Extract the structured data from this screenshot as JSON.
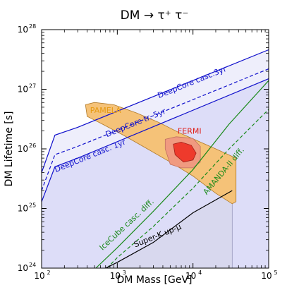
{
  "chart_data": {
    "type": "line",
    "title": "DM → τ⁺ τ⁻",
    "xlabel": "DM Mass [GeV]",
    "ylabel": "DM Lifetime [s]",
    "x_scale": "log",
    "y_scale": "log",
    "xlim": [
      100,
      100000
    ],
    "ylim": [
      1e+24,
      1e+28
    ],
    "xticks": [
      {
        "value": 100,
        "base": "10",
        "exp": "2"
      },
      {
        "value": 1000,
        "base": "10",
        "exp": "3"
      },
      {
        "value": 10000,
        "base": "10",
        "exp": "4"
      },
      {
        "value": 100000,
        "base": "10",
        "exp": "5"
      }
    ],
    "yticks": [
      {
        "value": 1e+24,
        "base": "10",
        "exp": "24"
      },
      {
        "value": 1e+25,
        "base": "10",
        "exp": "25"
      },
      {
        "value": 1e+26,
        "base": "10",
        "exp": "26"
      },
      {
        "value": 1e+27,
        "base": "10",
        "exp": "27"
      },
      {
        "value": 1e+28,
        "base": "10",
        "exp": "28"
      }
    ],
    "grid": false,
    "colors": {
      "deepcore": "#1010cc",
      "fill_deepcore_3yr": "#eeeefb",
      "fill_deepcore_1yr": "#ddddf8",
      "fill_superk": "#d8d8ee",
      "icecube": "#1a8a1a",
      "pamela_fill": "#f5c278",
      "pamela_edge": "#b07a2a",
      "pamela_label": "#e69a10",
      "fermi_outer": "#f09a80",
      "fermi_inner": "#ee3a2c",
      "fermi_label": "#e0201a",
      "superk": "#000000"
    },
    "series": [
      {
        "name": "DeepCore casc.3yr",
        "style": "solid",
        "color": "#1010cc",
        "x": [
          100,
          150,
          300,
          100000
        ],
        "y": [
          4e+25,
          1.7e+26,
          2.3e+26,
          4.6e+27
        ]
      },
      {
        "name": "DeepCore tr. 5yr",
        "style": "dashed",
        "color": "#1010cc",
        "x": [
          100,
          150,
          300,
          100000
        ],
        "y": [
          2e+25,
          8e+25,
          1.1e+26,
          2.2e+27
        ]
      },
      {
        "name": "DeepCore casc. 1yr",
        "style": "solid",
        "color": "#1010cc",
        "x": [
          100,
          150,
          300,
          100000
        ],
        "y": [
          1.3e+25,
          5e+25,
          7e+25,
          1.5e+27
        ]
      },
      {
        "name": "IceCube casc. diff.",
        "style": "solid",
        "color": "#1a8a1a",
        "x": [
          520,
          1000,
          3000,
          10000,
          30000,
          100000
        ],
        "y": [
          1e+24,
          2.2e+24,
          9e+24,
          4.5e+25,
          2.6e+26,
          1.4e+27
        ]
      },
      {
        "name": "AMANDA-II diff.",
        "style": "dashed",
        "color": "#1a8a1a",
        "x": [
          730,
          1000,
          3000,
          10000,
          30000,
          100000
        ],
        "y": [
          1e+24,
          1.5e+24,
          5e+24,
          2.2e+25,
          1e+26,
          4.6e+26
        ]
      },
      {
        "name": "Super-K up-μ",
        "style": "solid",
        "color": "#000000",
        "x": [
          700,
          1000,
          3000,
          10000,
          33000
        ],
        "y": [
          1e+24,
          1.25e+24,
          2.7e+24,
          8.5e+24,
          2e+25
        ]
      }
    ],
    "regions": [
      {
        "name": "PAMELA",
        "x": [
          380,
          500,
          900,
          1800,
          3500,
          7000,
          20000,
          37000,
          37000,
          33000,
          20000,
          10000,
          5000,
          2500,
          1200,
          600,
          400
        ],
        "y": [
          5.5e+26,
          6e+26,
          5.5e+26,
          4e+26,
          2.8e+26,
          1.8e+26,
          1e+26,
          7e+25,
          1.3e+25,
          1.2e+25,
          1.8e+25,
          3.5e+25,
          6e+25,
          1e+26,
          1.7e+26,
          2.7e+26,
          3.5e+26
        ]
      },
      {
        "name": "FERMI",
        "x": [
          4300,
          6000,
          10000,
          12500,
          12500,
          10000,
          7000,
          5000,
          4300
        ],
        "y": [
          1.45e+26,
          1.6e+26,
          1.5e+26,
          1.1e+26,
          6e+25,
          4.8e+25,
          4.8e+25,
          5.5e+25,
          1e+26
        ]
      },
      {
        "name": "FERMI inner",
        "x": [
          5500,
          7000,
          9500,
          11000,
          10000,
          7500,
          5800
        ],
        "y": [
          1.2e+26,
          1.3e+26,
          1.15e+26,
          8.5e+25,
          6.5e+25,
          6e+25,
          8e+25
        ]
      }
    ],
    "annotations": [
      {
        "text": "DeepCore casc.3yr",
        "x": 10000,
        "y": 1.2e+27,
        "color": "#1010cc",
        "angle": -22
      },
      {
        "text": "DeepCore tr. 5yr",
        "x": 1800,
        "y": 2.5e+26,
        "color": "#1010cc",
        "angle": -22
      },
      {
        "text": "DeepCore casc. 1yr",
        "x": 450,
        "y": 7e+25,
        "color": "#1010cc",
        "angle": -22
      },
      {
        "text": "PAMELA",
        "x": 700,
        "y": 4e+26,
        "color": "#e69a10",
        "angle": 0
      },
      {
        "text": "FERMI",
        "x": 9000,
        "y": 1.8e+26,
        "color": "#e0201a",
        "angle": 0
      },
      {
        "text": "IceCube casc. diff.",
        "x": 1400,
        "y": 5e+24,
        "color": "#1a8a1a",
        "angle": -43
      },
      {
        "text": "AMANDA-II diff.",
        "x": 27000,
        "y": 4e+25,
        "color": "#1a8a1a",
        "angle": -50
      },
      {
        "text": "Super-K up-μ",
        "x": 3500,
        "y": 3.2e+24,
        "color": "#000000",
        "angle": -22
      }
    ]
  }
}
